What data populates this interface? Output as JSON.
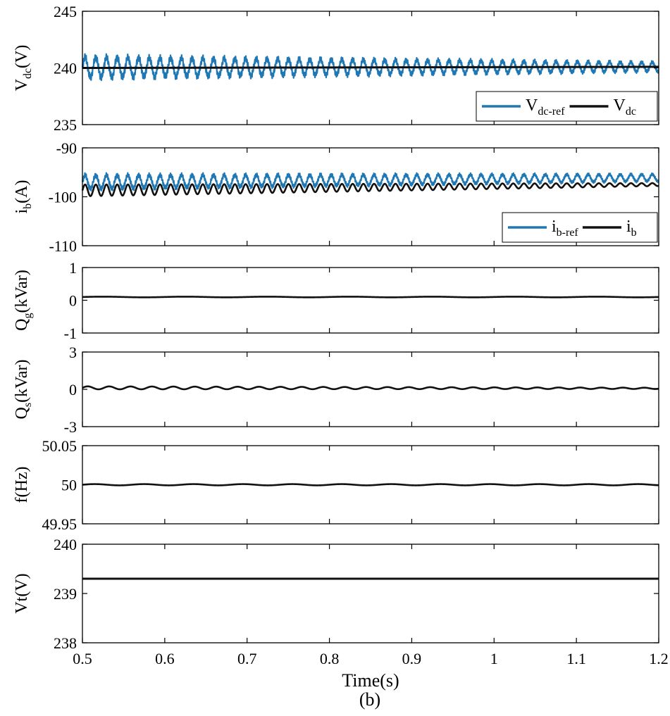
{
  "caption": "(b)",
  "colors": {
    "ref": "#1f77b4",
    "meas": "#111111"
  },
  "chart_data": [
    {
      "type": "line",
      "ylabel": "V",
      "ylabel_sub": "dc",
      "ylabel_unit": "(V)",
      "ylim": [
        235,
        245
      ],
      "yticks": [
        "235",
        "240",
        "245"
      ],
      "xlim": [
        0.5,
        1.2
      ],
      "legend": {
        "placement": "bottom-right",
        "entries": [
          {
            "main": "V",
            "sub": "dc-ref"
          },
          {
            "main": "V",
            "sub": "dc"
          }
        ]
      },
      "series": [
        {
          "role": "ref",
          "style": "band",
          "x": [
            0.5,
            1.2
          ],
          "center": [
            240.05,
            240.1
          ],
          "amplitude": [
            0.9,
            0.4
          ],
          "period": 0.013
        },
        {
          "role": "meas",
          "style": "line",
          "x": [
            0.5,
            1.2
          ],
          "y": [
            240.0,
            240.1
          ]
        }
      ]
    },
    {
      "type": "line",
      "ylabel": "i",
      "ylabel_sub": "b",
      "ylabel_unit": "(A)",
      "ylim": [
        -110,
        -90
      ],
      "yticks": [
        "-110",
        "-100",
        "-90"
      ],
      "xlim": [
        0.5,
        1.2
      ],
      "legend": {
        "placement": "bottom-right",
        "entries": [
          {
            "main": "i",
            "sub": "b-ref"
          },
          {
            "main": "i",
            "sub": "b"
          }
        ]
      },
      "series": [
        {
          "role": "ref",
          "style": "band",
          "x": [
            0.5,
            1.2
          ],
          "center": [
            -97.0,
            -96.1
          ],
          "amplitude": [
            1.4,
            0.7
          ],
          "period": 0.013
        },
        {
          "role": "meas",
          "style": "wave",
          "x": [
            0.5,
            1.2
          ],
          "center": [
            -98.7,
            -97.5
          ],
          "amplitude": [
            1.2,
            0.3
          ],
          "period": 0.013
        }
      ]
    },
    {
      "type": "line",
      "ylabel": "Q",
      "ylabel_sub": "g",
      "ylabel_unit": "(kVar)",
      "ylim": [
        -1,
        1
      ],
      "yticks": [
        "-1",
        "0",
        "1"
      ],
      "xlim": [
        0.5,
        1.2
      ],
      "series": [
        {
          "role": "meas",
          "style": "wave",
          "x": [
            0.5,
            1.2
          ],
          "center": [
            0.1,
            0.1
          ],
          "amplitude": [
            0.01,
            0.01
          ],
          "period": 0.1
        }
      ]
    },
    {
      "type": "line",
      "ylabel": "Q",
      "ylabel_sub": "s",
      "ylabel_unit": "(kVar)",
      "ylim": [
        -3,
        3
      ],
      "yticks": [
        "-3",
        "0",
        "3"
      ],
      "xlim": [
        0.5,
        1.2
      ],
      "series": [
        {
          "role": "meas",
          "style": "wave",
          "x": [
            0.5,
            1.2
          ],
          "center": [
            0.12,
            0.08
          ],
          "amplitude": [
            0.12,
            0.05
          ],
          "period": 0.026
        }
      ]
    },
    {
      "type": "line",
      "ylabel": "f(Hz)",
      "ylabel_sub": "",
      "ylabel_unit": "",
      "ylim": [
        49.95,
        50.05
      ],
      "yticks": [
        "49.95",
        "50",
        "50.05"
      ],
      "xlim": [
        0.5,
        1.2
      ],
      "series": [
        {
          "role": "meas",
          "style": "wave",
          "x": [
            0.5,
            1.2
          ],
          "center": [
            50.0,
            50.0
          ],
          "amplitude": [
            0.0008,
            0.0008
          ],
          "period": 0.06
        }
      ]
    },
    {
      "type": "line",
      "ylabel": "Vt(V)",
      "ylabel_sub": "",
      "ylabel_unit": "",
      "ylim": [
        238,
        240
      ],
      "yticks": [
        "238",
        "239",
        "240"
      ],
      "xlim": [
        0.5,
        1.2
      ],
      "xticks": [
        "0.5",
        "0.6",
        "0.7",
        "0.8",
        "0.9",
        "1",
        "1.1",
        "1.2"
      ],
      "xlabel": "Time(s)",
      "series": [
        {
          "role": "meas",
          "style": "line",
          "x": [
            0.5,
            1.2
          ],
          "y": [
            239.3,
            239.3
          ]
        }
      ]
    }
  ]
}
